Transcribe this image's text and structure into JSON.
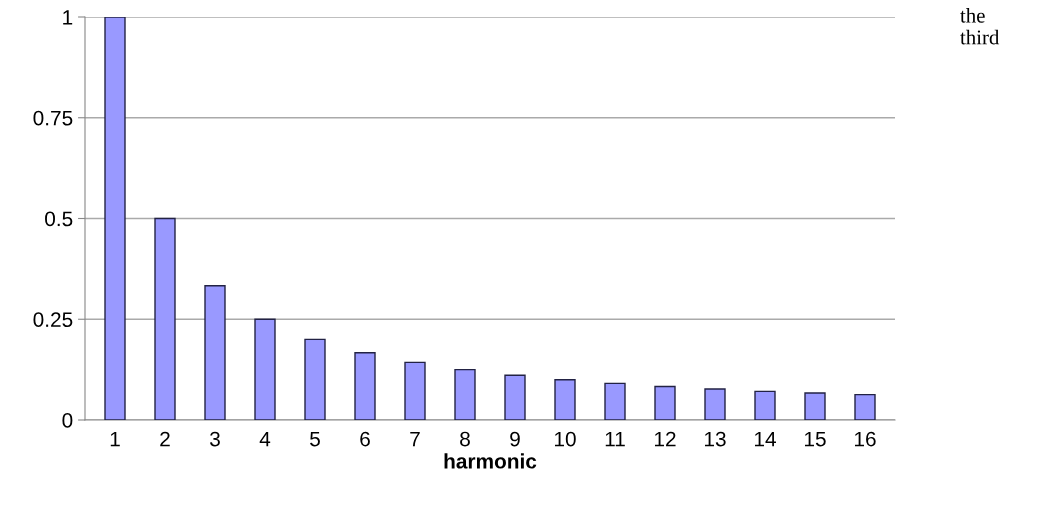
{
  "chart_data": {
    "type": "bar",
    "xlabel": "harmonic",
    "categories": [
      "1",
      "2",
      "3",
      "4",
      "5",
      "6",
      "7",
      "8",
      "9",
      "10",
      "11",
      "12",
      "13",
      "14",
      "15",
      "16"
    ],
    "values": [
      1,
      0.5,
      0.333,
      0.25,
      0.2,
      0.167,
      0.143,
      0.125,
      0.111,
      0.1,
      0.091,
      0.083,
      0.077,
      0.071,
      0.067,
      0.063
    ],
    "color": "#9999ff",
    "ylim": [
      0,
      1
    ],
    "yticks": [
      0,
      {
        "value": 0.25,
        "label": "0.25"
      },
      {
        "value": 0.5,
        "label": "0.5"
      },
      {
        "value": 0.75,
        "label": "0.75"
      },
      1
    ],
    "grid": "y",
    "annotations": [
      "the\nthird"
    ]
  }
}
